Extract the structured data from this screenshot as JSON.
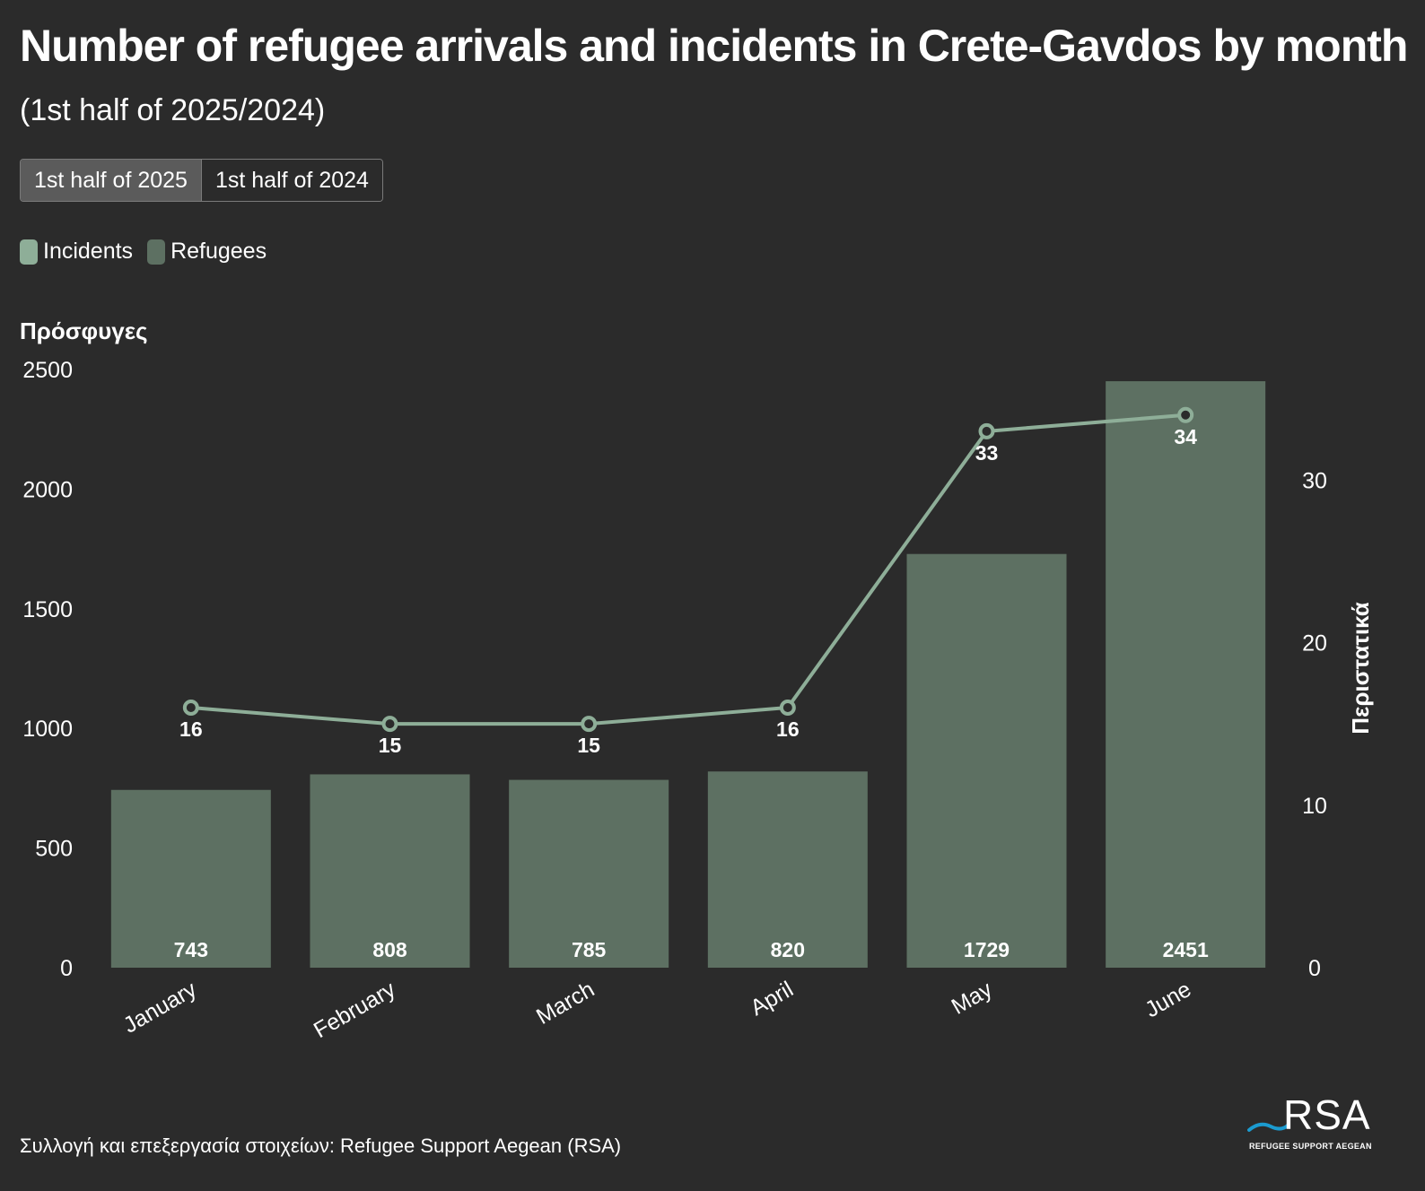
{
  "header": {
    "title": "Number of refugee arrivals and incidents in Crete-Gavdos by month",
    "subtitle": "(1st half of 2025/2024)"
  },
  "toggle": {
    "options": [
      "1st half of 2025",
      "1st half of 2024"
    ],
    "active_index": 0
  },
  "legend": {
    "items": [
      {
        "label": "Incidents",
        "color": "#8eae98"
      },
      {
        "label": "Refugees",
        "color": "#5d7062"
      }
    ]
  },
  "chart_data": {
    "type": "bar",
    "categories": [
      "January",
      "February",
      "March",
      "April",
      "May",
      "June"
    ],
    "series": [
      {
        "name": "Refugees",
        "type": "bar",
        "axis": "left",
        "values": [
          743,
          808,
          785,
          820,
          1729,
          2451
        ],
        "color": "#5d7062"
      },
      {
        "name": "Incidents",
        "type": "line",
        "axis": "right",
        "values": [
          16,
          15,
          15,
          16,
          33,
          34
        ],
        "color": "#8eae98"
      }
    ],
    "ylabel": "Πρόσφυγες",
    "ylim": [
      0,
      2500
    ],
    "yticks": [
      0,
      500,
      1000,
      1500,
      2000,
      2500
    ],
    "y2label": "Περιστατικά",
    "y2lim": [
      0,
      36.8
    ],
    "y2ticks": [
      0,
      10,
      20,
      30
    ],
    "grid": false,
    "legend_position": "top-left"
  },
  "footer": {
    "source": "Συλλογή και επεξεργασία στοιχείων: Refugee Support Aegean (RSA)"
  },
  "logo": {
    "text": "RSA",
    "subtext": "REFUGEE SUPPORT AEGEAN"
  }
}
